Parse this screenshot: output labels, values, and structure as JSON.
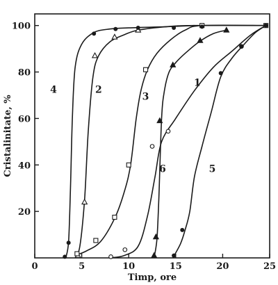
{
  "chart_data": {
    "type": "line",
    "title": "",
    "xlabel": "Timp, ore",
    "ylabel": "Cristalinitate, %",
    "xlim": [
      0,
      25
    ],
    "ylim": [
      0,
      105
    ],
    "xticks": [
      0,
      5,
      10,
      15,
      20,
      25
    ],
    "yticks": [
      20,
      40,
      60,
      80,
      100
    ],
    "grid": false,
    "legend": "none",
    "series": [
      {
        "name": "1",
        "marker": "open-circle",
        "curve": [
          [
            8,
            0
          ],
          [
            9.5,
            1
          ],
          [
            11,
            5
          ],
          [
            12,
            18
          ],
          [
            12.8,
            35
          ],
          [
            13.5,
            50
          ],
          [
            15,
            60
          ],
          [
            17,
            72
          ],
          [
            19,
            82
          ],
          [
            21,
            89
          ],
          [
            23,
            96
          ],
          [
            24.6,
            100
          ]
        ],
        "points": [
          [
            8.1,
            0.5
          ],
          [
            9.6,
            3.5
          ],
          [
            12.5,
            48
          ],
          [
            14.2,
            54.5
          ],
          [
            22,
            91
          ],
          [
            24.6,
            100
          ]
        ]
      },
      {
        "name": "2",
        "marker": "open-triangle",
        "curve": [
          [
            4.3,
            0
          ],
          [
            4.8,
            5
          ],
          [
            5.3,
            25
          ],
          [
            5.7,
            55
          ],
          [
            6.2,
            78
          ],
          [
            6.8,
            87
          ],
          [
            8,
            93
          ],
          [
            9.5,
            96
          ],
          [
            11,
            98
          ],
          [
            14,
            99.5
          ],
          [
            17,
            100
          ],
          [
            24.6,
            100
          ]
        ],
        "points": [
          [
            4.6,
            1
          ],
          [
            5.3,
            24
          ],
          [
            6.4,
            87
          ],
          [
            8.5,
            95
          ],
          [
            11,
            98
          ]
        ]
      },
      {
        "name": "3",
        "marker": "open-square",
        "curve": [
          [
            4.3,
            1
          ],
          [
            5.5,
            3
          ],
          [
            7,
            7
          ],
          [
            8.5,
            17
          ],
          [
            9.5,
            28
          ],
          [
            10.2,
            40
          ],
          [
            10.8,
            60
          ],
          [
            11.3,
            72
          ],
          [
            12,
            81
          ],
          [
            13,
            88
          ],
          [
            14.5,
            94
          ],
          [
            16,
            98
          ],
          [
            17.8,
            100
          ],
          [
            24.6,
            100
          ]
        ],
        "points": [
          [
            4.5,
            1.8
          ],
          [
            6.5,
            7.5
          ],
          [
            8.5,
            17.5
          ],
          [
            10,
            40
          ],
          [
            11.8,
            81
          ],
          [
            17.8,
            100
          ],
          [
            24.6,
            100
          ]
        ]
      },
      {
        "name": "4",
        "marker": "filled-circle",
        "curve": [
          [
            3.3,
            0
          ],
          [
            3.6,
            7
          ],
          [
            3.8,
            30
          ],
          [
            4.0,
            60
          ],
          [
            4.3,
            82
          ],
          [
            5,
            92
          ],
          [
            6.3,
            97
          ],
          [
            8,
            98.5
          ],
          [
            10,
            99
          ],
          [
            14,
            99.5
          ],
          [
            17,
            100
          ]
        ],
        "points": [
          [
            3.2,
            0.5
          ],
          [
            3.6,
            6.5
          ],
          [
            6.3,
            96.5
          ],
          [
            8.6,
            98.5
          ],
          [
            11,
            99
          ],
          [
            14.8,
            99
          ],
          [
            17.8,
            99.5
          ]
        ]
      },
      {
        "name": "5",
        "marker": "filled-circle",
        "curve": [
          [
            14.7,
            0
          ],
          [
            15.5,
            6
          ],
          [
            16,
            12
          ],
          [
            16.5,
            20
          ],
          [
            17,
            35
          ],
          [
            17.8,
            48
          ],
          [
            18.8,
            63
          ],
          [
            19.8,
            78
          ],
          [
            21,
            86
          ],
          [
            22.3,
            92
          ],
          [
            23.5,
            97
          ],
          [
            24.6,
            100
          ]
        ],
        "points": [
          [
            14.8,
            1
          ],
          [
            15.7,
            12
          ],
          [
            19.8,
            79.5
          ],
          [
            22,
            91
          ],
          [
            24.6,
            100
          ]
        ]
      },
      {
        "name": "6",
        "marker": "filled-triangle",
        "curve": [
          [
            12.7,
            0
          ],
          [
            13,
            8
          ],
          [
            13.2,
            25
          ],
          [
            13.5,
            60
          ],
          [
            13.8,
            72
          ],
          [
            14.3,
            80
          ],
          [
            15,
            84
          ],
          [
            16,
            88
          ],
          [
            17.5,
            93
          ],
          [
            19,
            96.5
          ],
          [
            20.4,
            98
          ]
        ],
        "points": [
          [
            12.7,
            1
          ],
          [
            12.9,
            9
          ],
          [
            13.3,
            59
          ],
          [
            14.7,
            83
          ],
          [
            17.6,
            93.5
          ],
          [
            20.4,
            98
          ]
        ]
      }
    ],
    "annotations": [
      {
        "text": "4",
        "x": 2.0,
        "y": 71
      },
      {
        "text": "2",
        "x": 6.8,
        "y": 71
      },
      {
        "text": "3",
        "x": 11.8,
        "y": 68
      },
      {
        "text": "1",
        "x": 17.3,
        "y": 74
      },
      {
        "text": "6",
        "x": 13.6,
        "y": 37
      },
      {
        "text": "5",
        "x": 18.9,
        "y": 37
      }
    ]
  }
}
